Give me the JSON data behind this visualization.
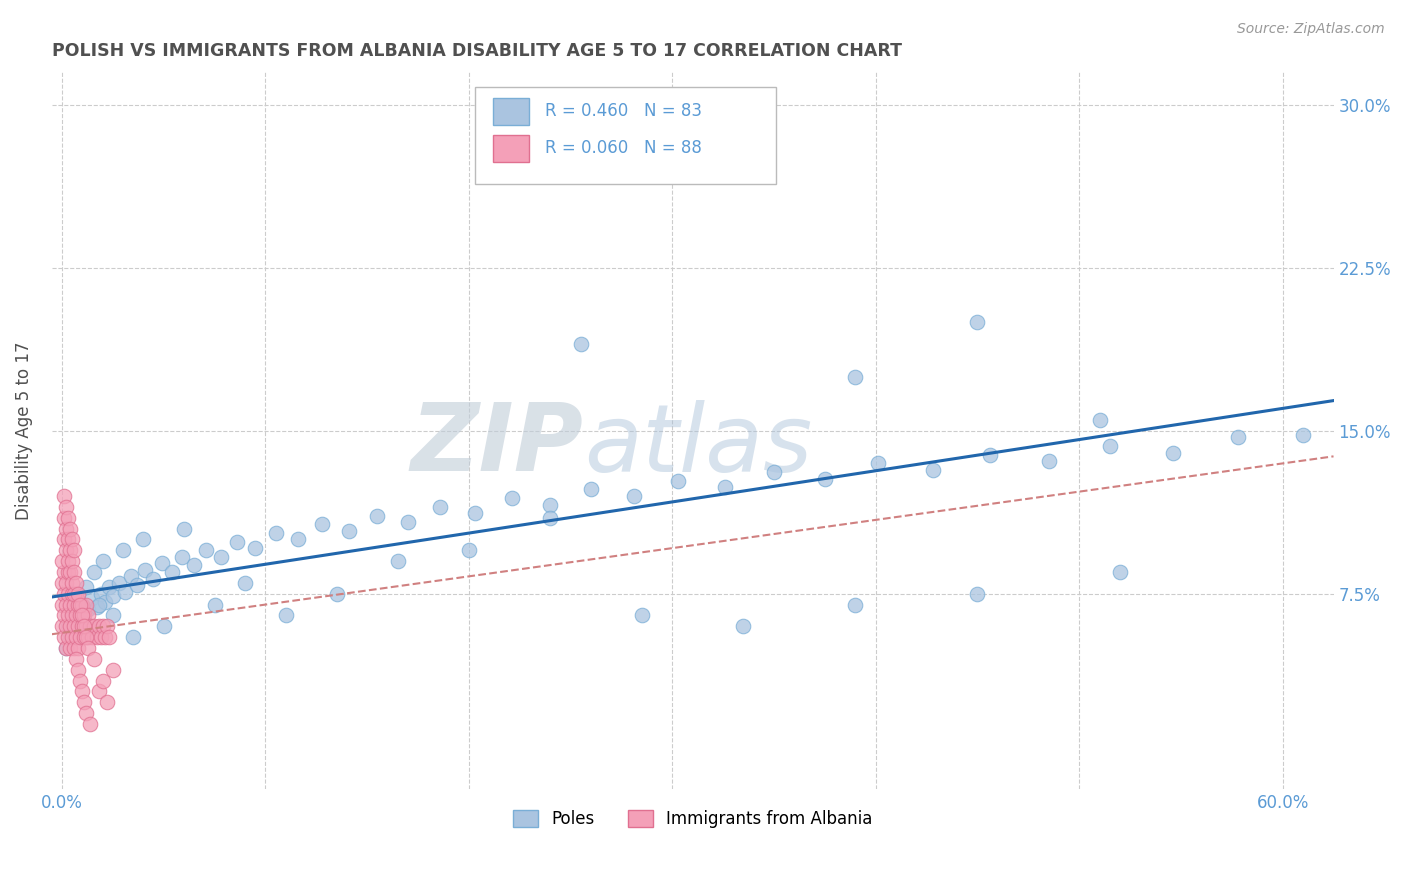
{
  "title": "POLISH VS IMMIGRANTS FROM ALBANIA DISABILITY AGE 5 TO 17 CORRELATION CHART",
  "source": "Source: ZipAtlas.com",
  "ylabel": "Disability Age 5 to 17",
  "xlim": [
    -0.005,
    0.625
  ],
  "ylim": [
    -0.015,
    0.315
  ],
  "series1_color": "#aac4e0",
  "series1_edge": "#7aaed6",
  "series2_color": "#f4a0b8",
  "series2_edge": "#e07090",
  "line1_color": "#2166ac",
  "line2_color": "#d08080",
  "legend_label1": "Poles",
  "legend_label2": "Immigrants from Albania",
  "legend_R1": "R = 0.460",
  "legend_N1": "N = 83",
  "legend_R2": "R = 0.060",
  "legend_N2": "N = 88",
  "watermark_zip": "ZIP",
  "watermark_atlas": "atlas",
  "background_color": "#ffffff",
  "grid_color": "#cccccc",
  "title_color": "#505050",
  "axis_label_color": "#505050",
  "tick_label_color": "#5b9bd5",
  "poles_x": [
    0.003,
    0.005,
    0.007,
    0.009,
    0.011,
    0.013,
    0.015,
    0.017,
    0.019,
    0.021,
    0.023,
    0.025,
    0.028,
    0.031,
    0.034,
    0.037,
    0.041,
    0.045,
    0.049,
    0.054,
    0.059,
    0.065,
    0.071,
    0.078,
    0.086,
    0.095,
    0.105,
    0.116,
    0.128,
    0.141,
    0.155,
    0.17,
    0.186,
    0.203,
    0.221,
    0.24,
    0.26,
    0.281,
    0.303,
    0.326,
    0.35,
    0.375,
    0.401,
    0.428,
    0.456,
    0.485,
    0.515,
    0.546,
    0.578,
    0.61,
    0.002,
    0.004,
    0.006,
    0.008,
    0.01,
    0.012,
    0.014,
    0.016,
    0.018,
    0.02,
    0.025,
    0.03,
    0.035,
    0.04,
    0.05,
    0.06,
    0.075,
    0.09,
    0.11,
    0.135,
    0.165,
    0.2,
    0.24,
    0.285,
    0.335,
    0.39,
    0.45,
    0.52,
    0.32,
    0.45,
    0.255,
    0.39,
    0.51
  ],
  "poles_y": [
    0.06,
    0.065,
    0.058,
    0.07,
    0.062,
    0.068,
    0.073,
    0.069,
    0.075,
    0.071,
    0.078,
    0.074,
    0.08,
    0.076,
    0.083,
    0.079,
    0.086,
    0.082,
    0.089,
    0.085,
    0.092,
    0.088,
    0.095,
    0.092,
    0.099,
    0.096,
    0.103,
    0.1,
    0.107,
    0.104,
    0.111,
    0.108,
    0.115,
    0.112,
    0.119,
    0.116,
    0.123,
    0.12,
    0.127,
    0.124,
    0.131,
    0.128,
    0.135,
    0.132,
    0.139,
    0.136,
    0.143,
    0.14,
    0.147,
    0.148,
    0.05,
    0.055,
    0.068,
    0.072,
    0.063,
    0.078,
    0.06,
    0.085,
    0.07,
    0.09,
    0.065,
    0.095,
    0.055,
    0.1,
    0.06,
    0.105,
    0.07,
    0.08,
    0.065,
    0.075,
    0.09,
    0.095,
    0.11,
    0.065,
    0.06,
    0.07,
    0.075,
    0.085,
    0.295,
    0.2,
    0.19,
    0.175,
    0.155
  ],
  "albania_x": [
    0.0,
    0.0,
    0.0,
    0.001,
    0.001,
    0.001,
    0.001,
    0.002,
    0.002,
    0.002,
    0.002,
    0.003,
    0.003,
    0.003,
    0.003,
    0.004,
    0.004,
    0.004,
    0.005,
    0.005,
    0.005,
    0.006,
    0.006,
    0.006,
    0.007,
    0.007,
    0.007,
    0.008,
    0.008,
    0.008,
    0.009,
    0.009,
    0.01,
    0.01,
    0.011,
    0.011,
    0.012,
    0.012,
    0.013,
    0.013,
    0.014,
    0.015,
    0.016,
    0.017,
    0.018,
    0.019,
    0.02,
    0.021,
    0.022,
    0.023,
    0.0,
    0.001,
    0.001,
    0.002,
    0.002,
    0.003,
    0.003,
    0.004,
    0.004,
    0.005,
    0.005,
    0.006,
    0.006,
    0.007,
    0.008,
    0.009,
    0.01,
    0.011,
    0.012,
    0.013,
    0.001,
    0.002,
    0.003,
    0.004,
    0.005,
    0.006,
    0.007,
    0.008,
    0.009,
    0.01,
    0.011,
    0.012,
    0.014,
    0.016,
    0.018,
    0.02,
    0.022,
    0.025
  ],
  "albania_y": [
    0.06,
    0.07,
    0.08,
    0.055,
    0.065,
    0.075,
    0.085,
    0.05,
    0.06,
    0.07,
    0.08,
    0.055,
    0.065,
    0.075,
    0.085,
    0.05,
    0.06,
    0.07,
    0.055,
    0.065,
    0.075,
    0.05,
    0.06,
    0.07,
    0.055,
    0.065,
    0.075,
    0.05,
    0.06,
    0.07,
    0.055,
    0.065,
    0.06,
    0.07,
    0.055,
    0.065,
    0.06,
    0.07,
    0.055,
    0.065,
    0.06,
    0.055,
    0.06,
    0.055,
    0.06,
    0.055,
    0.06,
    0.055,
    0.06,
    0.055,
    0.09,
    0.1,
    0.11,
    0.095,
    0.105,
    0.09,
    0.1,
    0.095,
    0.085,
    0.09,
    0.08,
    0.085,
    0.075,
    0.08,
    0.075,
    0.07,
    0.065,
    0.06,
    0.055,
    0.05,
    0.12,
    0.115,
    0.11,
    0.105,
    0.1,
    0.095,
    0.045,
    0.04,
    0.035,
    0.03,
    0.025,
    0.02,
    0.015,
    0.045,
    0.03,
    0.035,
    0.025,
    0.04
  ]
}
